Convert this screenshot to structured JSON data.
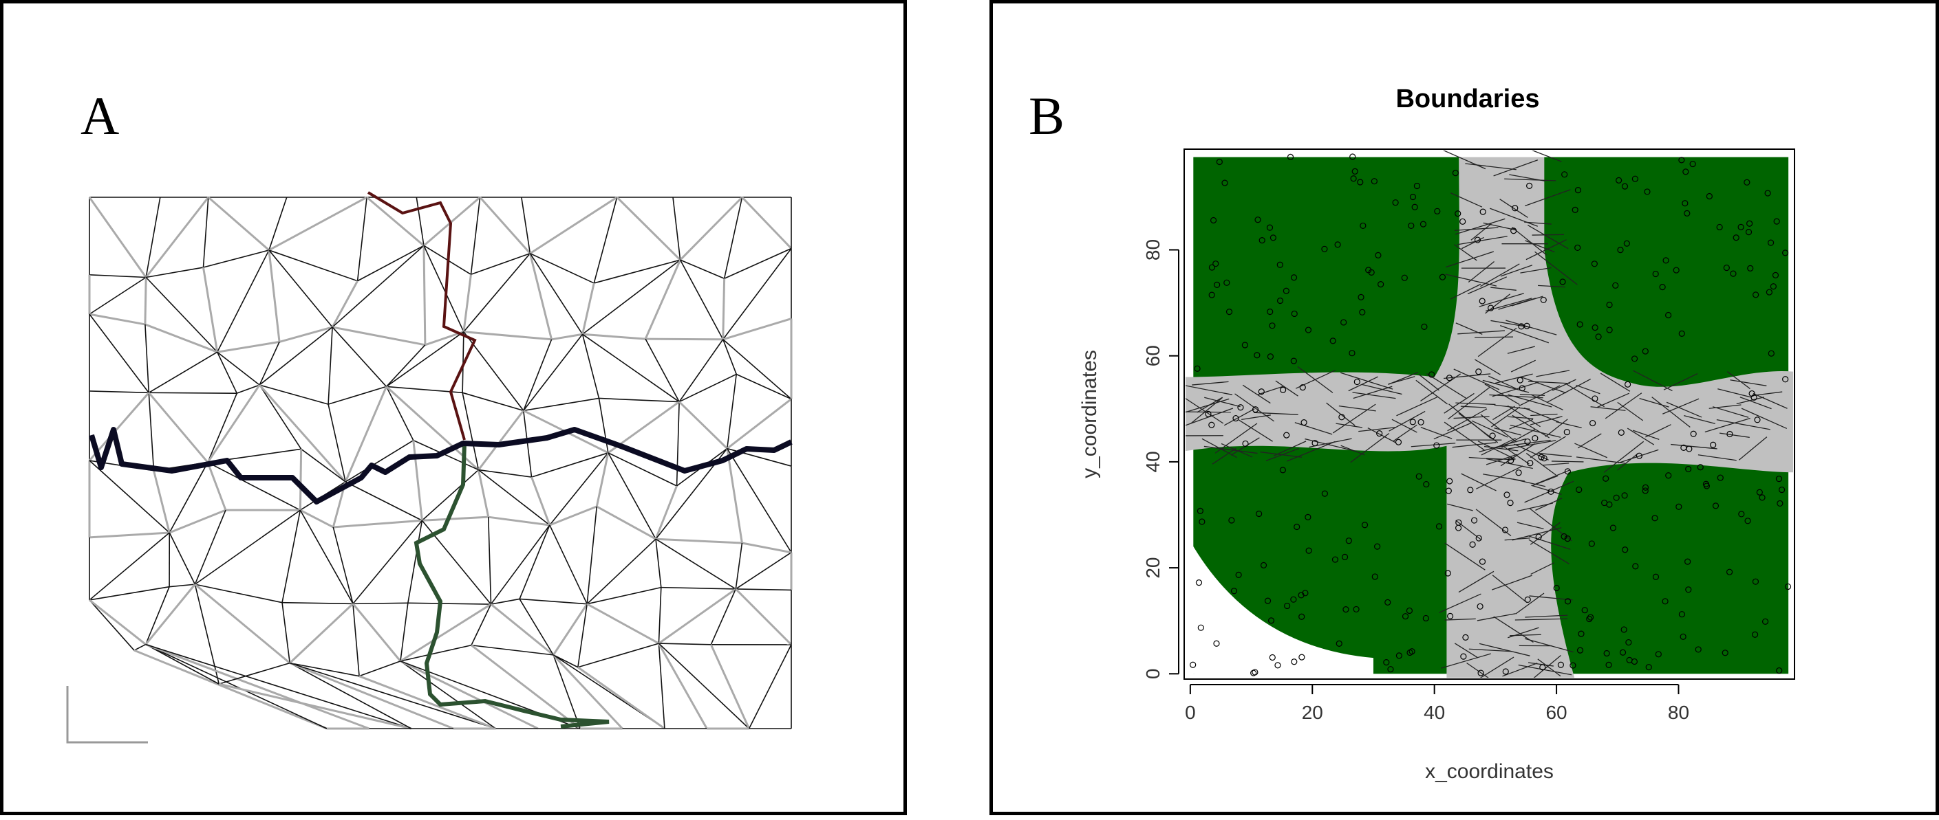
{
  "panel_a": {
    "letter": "A",
    "colors": {
      "mesh_gray": "#aaaaaa",
      "mesh_black": "#111111",
      "main_boundary": "#0b0b22",
      "boundary_red": "#5a1212",
      "boundary_green": "#2c5230"
    }
  },
  "panel_b": {
    "letter": "B",
    "chart_data": {
      "type": "heatmap",
      "title": "Boundaries",
      "xlabel": "x_coordinates",
      "ylabel": "y_coordinates",
      "xlim": [
        0,
        100
      ],
      "ylim": [
        0,
        100
      ],
      "x_ticks": [
        0,
        20,
        40,
        60,
        80
      ],
      "y_ticks": [
        0,
        20,
        40,
        60,
        80
      ],
      "x_tick_labels": [
        "0",
        "20",
        "40",
        "60",
        "80"
      ],
      "y_tick_labels": [
        "0",
        "20",
        "40",
        "60",
        "80"
      ],
      "regions": [
        {
          "color": "#006400",
          "x": [
            0,
            45
          ],
          "y": [
            57,
            100
          ]
        },
        {
          "color": "#006400",
          "x": [
            58,
            100
          ],
          "y": [
            57,
            100
          ]
        },
        {
          "color": "#006400",
          "x": [
            0,
            42
          ],
          "y": [
            0,
            43
          ]
        },
        {
          "color": "#006400",
          "x": [
            62,
            100
          ],
          "y": [
            0,
            38
          ]
        },
        {
          "color": "#c0c0c0",
          "x": [
            0,
            100
          ],
          "y": [
            38,
            57
          ]
        },
        {
          "color": "#c0c0c0",
          "x": [
            42,
            62
          ],
          "y": [
            0,
            100
          ]
        }
      ],
      "colors": {
        "region": "#006400",
        "boundary": "#c0c0c0",
        "points": "#000000"
      }
    }
  }
}
